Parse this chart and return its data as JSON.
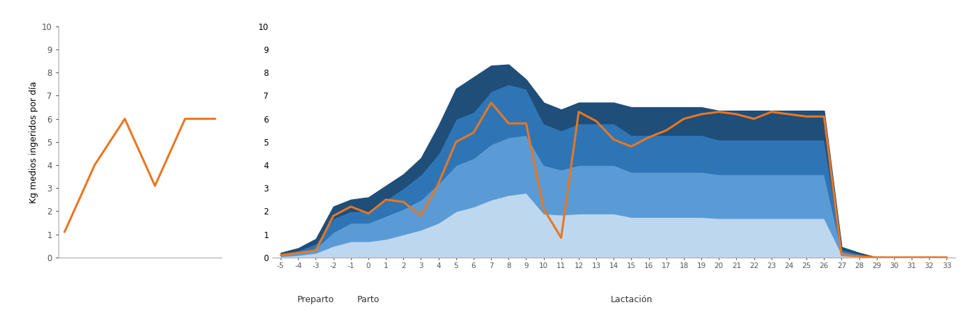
{
  "background_color": "#ffffff",
  "ylabel": "Kg medios ingeridos por día",
  "ylim": [
    0,
    10
  ],
  "yticks": [
    0,
    1,
    2,
    3,
    4,
    5,
    6,
    7,
    8,
    9,
    10
  ],
  "left_x": [
    -5,
    -4,
    -3,
    -2,
    -1,
    0
  ],
  "left_orange": [
    1.1,
    4.0,
    6.0,
    3.1,
    6.0,
    6.0
  ],
  "right_x_labels": [
    "-5",
    "-4",
    "-3",
    "-2",
    "-1",
    "0",
    "1",
    "2",
    "3",
    "4",
    "5",
    "6",
    "7",
    "8",
    "9",
    "10",
    "11",
    "12",
    "13",
    "14",
    "15",
    "16",
    "17",
    "18",
    "19",
    "20",
    "21",
    "22",
    "23",
    "24",
    "25",
    "26",
    "27",
    "28",
    "29",
    "30",
    "31",
    "32",
    "33"
  ],
  "right_orange": [
    0.1,
    0.2,
    0.3,
    1.8,
    2.2,
    1.9,
    2.5,
    2.4,
    1.8,
    3.2,
    5.0,
    5.4,
    6.7,
    5.8,
    5.8,
    2.1,
    0.85,
    6.3,
    5.9,
    5.1,
    4.8,
    5.2,
    5.5,
    6.0,
    6.2,
    6.3,
    6.2,
    6.0,
    6.3,
    6.2,
    6.1,
    6.1,
    0.1,
    0.05,
    0.0,
    0.0,
    0.0,
    0.0,
    0.0
  ],
  "band1_top": [
    0.05,
    0.1,
    0.2,
    0.5,
    0.7,
    0.7,
    0.8,
    1.0,
    1.2,
    1.5,
    2.0,
    2.2,
    2.5,
    2.7,
    2.8,
    1.9,
    1.85,
    1.9,
    1.9,
    1.9,
    1.75,
    1.75,
    1.75,
    1.75,
    1.75,
    1.7,
    1.7,
    1.7,
    1.7,
    1.7,
    1.7,
    1.7,
    0.15,
    0.05,
    0.0,
    0.0,
    0.0,
    0.0,
    0.0
  ],
  "band2_top": [
    0.1,
    0.2,
    0.4,
    1.1,
    1.5,
    1.5,
    1.8,
    2.1,
    2.5,
    3.2,
    4.0,
    4.3,
    4.9,
    5.2,
    5.3,
    4.0,
    3.8,
    4.0,
    4.0,
    4.0,
    3.7,
    3.7,
    3.7,
    3.7,
    3.7,
    3.6,
    3.6,
    3.6,
    3.6,
    3.6,
    3.6,
    3.6,
    0.25,
    0.1,
    0.0,
    0.0,
    0.0,
    0.0,
    0.0
  ],
  "band3_top": [
    0.15,
    0.3,
    0.6,
    1.7,
    2.0,
    2.0,
    2.5,
    3.0,
    3.6,
    4.5,
    6.0,
    6.3,
    7.2,
    7.5,
    7.3,
    5.8,
    5.5,
    5.8,
    5.8,
    5.8,
    5.3,
    5.3,
    5.3,
    5.3,
    5.3,
    5.1,
    5.1,
    5.1,
    5.1,
    5.1,
    5.1,
    5.1,
    0.35,
    0.15,
    0.0,
    0.0,
    0.0,
    0.0,
    0.0
  ],
  "band4_top": [
    0.2,
    0.4,
    0.8,
    2.2,
    2.5,
    2.6,
    3.1,
    3.6,
    4.3,
    5.7,
    7.3,
    7.8,
    8.3,
    8.35,
    7.7,
    6.7,
    6.4,
    6.7,
    6.7,
    6.7,
    6.5,
    6.5,
    6.5,
    6.5,
    6.5,
    6.35,
    6.35,
    6.35,
    6.35,
    6.35,
    6.35,
    6.35,
    0.45,
    0.2,
    0.0,
    0.0,
    0.0,
    0.0,
    0.0
  ],
  "color_band1": "#bdd7ee",
  "color_band2": "#5b9bd5",
  "color_band3": "#2e75b6",
  "color_band4": "#1f4e79",
  "color_orange": "#e87722",
  "label_preparto": "Preparto",
  "label_parto": "Parto",
  "label_lactacion": "Lactación",
  "preparto_tick_idx": 2,
  "parto_tick_idx": 5,
  "lactacion_tick_idx": 20
}
